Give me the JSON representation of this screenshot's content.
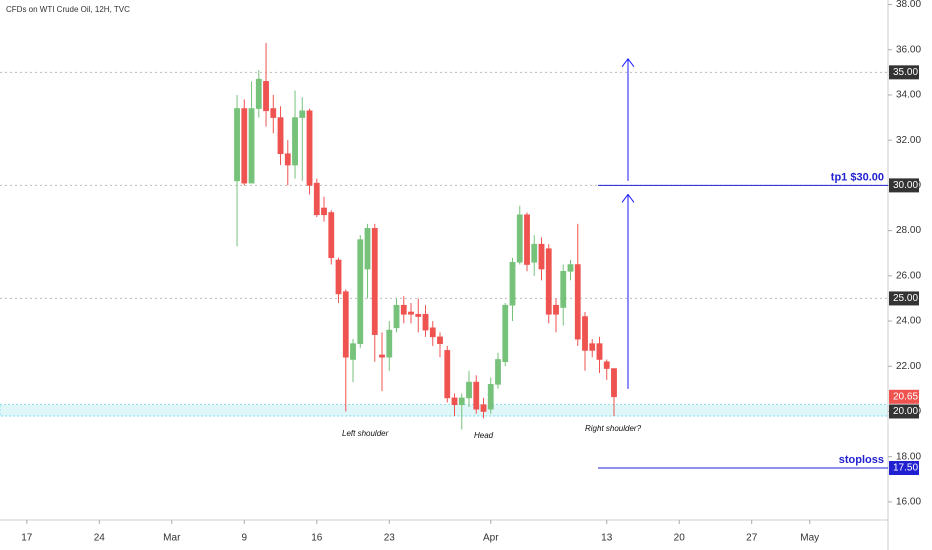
{
  "chart_data": {
    "type": "candlestick",
    "title": "CFDs on WTI Crude Oil, 12H, TVC",
    "x": [
      29,
      30,
      31,
      32,
      33,
      34,
      35,
      36,
      37,
      38,
      39,
      40,
      41,
      42,
      43,
      44,
      45,
      46,
      47,
      48,
      49,
      50,
      51,
      52,
      53,
      54,
      55,
      56,
      57,
      58,
      59,
      60,
      61,
      62,
      63,
      64,
      65,
      66,
      67,
      68,
      69,
      70,
      71,
      72,
      73,
      74,
      75,
      76,
      77,
      78,
      79,
      80,
      81
    ],
    "open": [
      30.2,
      33.4,
      30.1,
      33.4,
      34.6,
      33.4,
      33.0,
      31.4,
      30.9,
      33.0,
      33.3,
      30.1,
      29.0,
      28.8,
      26.7,
      25.3,
      22.3,
      23.0,
      26.3,
      28.1,
      22.5,
      22.4,
      23.7,
      24.7,
      24.4,
      24.3,
      24.3,
      23.7,
      23.3,
      22.7,
      20.6,
      20.3,
      20.6,
      21.3,
      20.3,
      20.1,
      21.2,
      22.2,
      24.7,
      26.6,
      28.7,
      26.6,
      27.4,
      27.2,
      24.7,
      24.6,
      26.2,
      26.5,
      24.2,
      23.0,
      23.0,
      22.2,
      21.9
    ],
    "high": [
      34.0,
      33.8,
      34.6,
      35.1,
      36.3,
      34.0,
      33.5,
      32.0,
      34.2,
      33.9,
      33.4,
      30.3,
      29.5,
      28.9,
      26.8,
      25.4,
      23.2,
      27.8,
      28.3,
      28.3,
      23.5,
      24.0,
      25.0,
      25.1,
      24.8,
      25.0,
      24.7,
      24.0,
      23.5,
      22.9,
      20.8,
      20.8,
      21.8,
      21.6,
      20.6,
      21.5,
      22.6,
      24.8,
      26.8,
      29.1,
      28.8,
      27.8,
      27.7,
      27.4,
      25.0,
      26.5,
      26.7,
      28.3,
      24.4,
      23.2,
      23.3,
      22.3,
      21.9
    ],
    "low": [
      27.3,
      30.0,
      30.2,
      33.0,
      32.6,
      32.3,
      30.9,
      30.0,
      30.3,
      30.2,
      29.6,
      28.6,
      28.4,
      26.5,
      24.8,
      20.0,
      21.3,
      22.8,
      25.0,
      22.2,
      20.9,
      21.8,
      23.5,
      23.9,
      23.9,
      23.5,
      23.3,
      22.9,
      22.4,
      20.4,
      19.8,
      19.2,
      20.2,
      19.9,
      19.7,
      19.9,
      21.0,
      22.0,
      24.0,
      26.5,
      26.2,
      26.0,
      25.8,
      23.9,
      23.5,
      23.8,
      25.8,
      22.9,
      21.8,
      22.4,
      21.7,
      21.4,
      19.8
    ],
    "close": [
      33.4,
      30.1,
      33.4,
      34.7,
      33.3,
      33.0,
      31.4,
      30.9,
      33.0,
      33.3,
      30.0,
      28.7,
      28.7,
      26.8,
      25.2,
      22.4,
      23.0,
      27.6,
      28.1,
      23.4,
      22.4,
      23.6,
      24.7,
      24.3,
      24.3,
      24.2,
      23.6,
      23.3,
      23.0,
      20.6,
      20.3,
      20.6,
      21.3,
      20.1,
      20.0,
      21.2,
      22.3,
      24.7,
      26.6,
      28.7,
      26.5,
      27.4,
      26.3,
      24.3,
      24.3,
      26.2,
      26.5,
      23.2,
      22.7,
      22.7,
      22.3,
      21.9,
      20.65
    ],
    "up_color": "#76c27a",
    "down_color": "#ef5350",
    "xlim": [
      -3.7,
      118.8
    ],
    "ylim": [
      15.2,
      38.2
    ],
    "xticks": [
      {
        "value": 0,
        "label": "17"
      },
      {
        "value": 10,
        "label": "24"
      },
      {
        "value": 20,
        "label": "Mar"
      },
      {
        "value": 30,
        "label": "9"
      },
      {
        "value": 40,
        "label": "16"
      },
      {
        "value": 50,
        "label": "23"
      },
      {
        "value": 64,
        "label": "Apr"
      },
      {
        "value": 80,
        "label": "13"
      },
      {
        "value": 90,
        "label": "20"
      },
      {
        "value": 100,
        "label": "27"
      },
      {
        "value": 108,
        "label": "May"
      }
    ],
    "yticks": [
      {
        "value": 16,
        "label": "16.00"
      },
      {
        "value": 18,
        "label": "18.00"
      },
      {
        "value": 20,
        "label": "20.00"
      },
      {
        "value": 22,
        "label": "22.00"
      },
      {
        "value": 24,
        "label": "24.00"
      },
      {
        "value": 26,
        "label": "26.00"
      },
      {
        "value": 28,
        "label": "28.00"
      },
      {
        "value": 30,
        "label": "30.00"
      },
      {
        "value": 32,
        "label": "32.00"
      },
      {
        "value": 34,
        "label": "34.00"
      },
      {
        "value": 36,
        "label": "36.00"
      },
      {
        "value": 38,
        "label": "38.00"
      }
    ],
    "dashed_levels": [
      35,
      30,
      25
    ],
    "zone": [
      19.8,
      20.3
    ],
    "target": {
      "value": 30,
      "label": "tp1 $30.00",
      "color": "#2020d0"
    },
    "stop": {
      "value": 17.5,
      "label": "stoploss",
      "color": "#2020d0"
    },
    "arrows": [
      {
        "from": 21.0,
        "to": 29.6
      },
      {
        "from": 30.2,
        "to": 35.6
      }
    ],
    "price_tags": [
      {
        "value": 35,
        "label": "35.00",
        "color": "#333333"
      },
      {
        "value": 30,
        "label": "30.00",
        "color": "#333333"
      },
      {
        "value": 25,
        "label": "25.00",
        "color": "#333333"
      },
      {
        "value": 20.65,
        "label": "20.65",
        "color": "#ef5350"
      },
      {
        "value": 20,
        "label": "20.00",
        "color": "#333333"
      },
      {
        "value": 17.5,
        "label": "17.50",
        "color": "#2020d0"
      }
    ],
    "annotations": [
      "Left shoulder",
      "Head",
      "Right shoulder?"
    ]
  }
}
